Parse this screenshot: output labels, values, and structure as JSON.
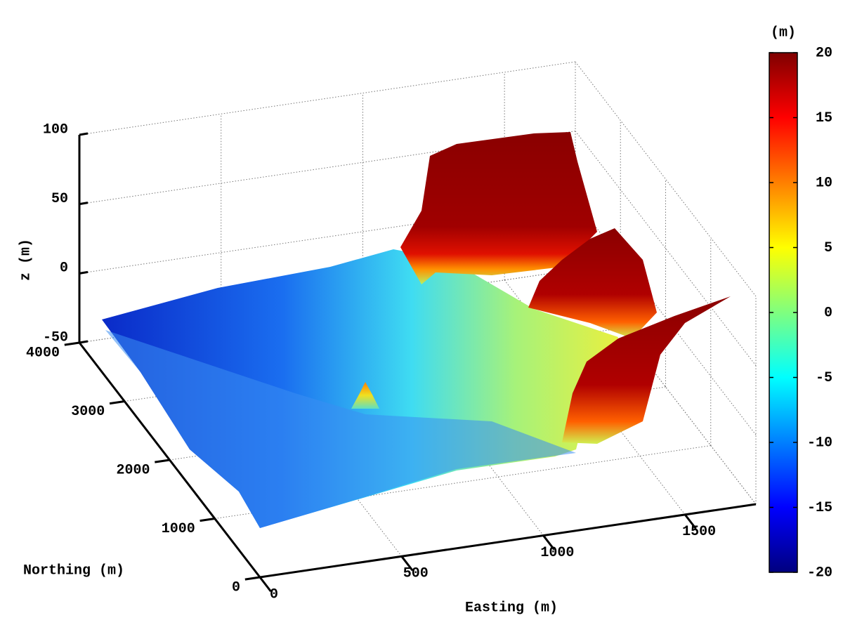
{
  "chart_data": {
    "type": "surface",
    "xlabel": "Easting (m)",
    "ylabel": "Northing (m)",
    "zlabel": "z (m)",
    "xlim": [
      0,
      1750
    ],
    "ylim": [
      0,
      4000
    ],
    "zlim": [
      -50,
      100
    ],
    "xticks": [
      0,
      500,
      1000,
      1500
    ],
    "yticks": [
      0,
      1000,
      2000,
      3000,
      4000
    ],
    "zticks": [
      -50,
      0,
      50,
      100
    ],
    "grid": true,
    "colorbar": {
      "label": "(m)",
      "colormap": "jet",
      "lim": [
        -20,
        20
      ],
      "ticks": [
        -20,
        -15,
        -10,
        -5,
        0,
        5,
        10,
        15,
        20
      ]
    }
  }
}
